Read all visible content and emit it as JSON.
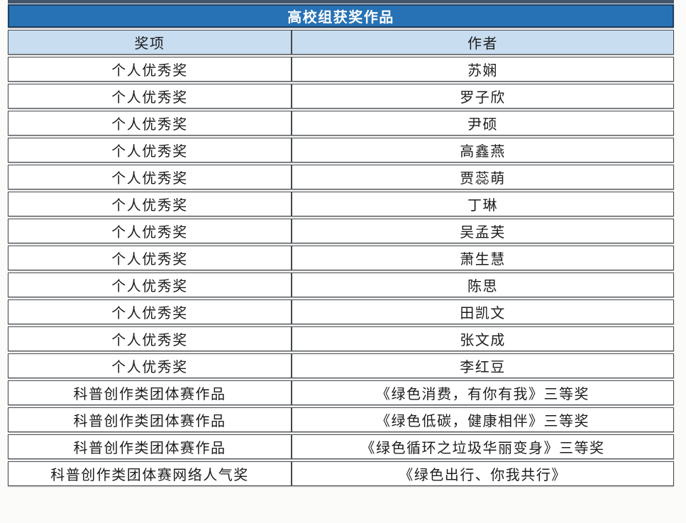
{
  "table": {
    "title": "高校组获奖作品",
    "columns": {
      "award": "奖项",
      "author": "作者"
    },
    "rows": [
      {
        "award": "个人优秀奖",
        "author": "苏娴"
      },
      {
        "award": "个人优秀奖",
        "author": "罗子欣"
      },
      {
        "award": "个人优秀奖",
        "author": "尹硕"
      },
      {
        "award": "个人优秀奖",
        "author": "高鑫燕"
      },
      {
        "award": "个人优秀奖",
        "author": "贾蕊萌"
      },
      {
        "award": "个人优秀奖",
        "author": "丁琳"
      },
      {
        "award": "个人优秀奖",
        "author": "吴孟芙"
      },
      {
        "award": "个人优秀奖",
        "author": "萧生慧"
      },
      {
        "award": "个人优秀奖",
        "author": "陈思"
      },
      {
        "award": "个人优秀奖",
        "author": "田凯文"
      },
      {
        "award": "个人优秀奖",
        "author": "张文成"
      },
      {
        "award": "个人优秀奖",
        "author": "李红豆"
      },
      {
        "award": "科普创作类团体赛作品",
        "author": "《绿色消费，有你有我》三等奖"
      },
      {
        "award": "科普创作类团体赛作品",
        "author": "《绿色低碳，健康相伴》三等奖"
      },
      {
        "award": "科普创作类团体赛作品",
        "author": "《绿色循环之垃圾华丽变身》三等奖"
      },
      {
        "award": "科普创作类团体赛网络人气奖",
        "author": "《绿色出行、你我共行》"
      }
    ]
  },
  "colors": {
    "title_bar_bg": "#2772b4",
    "title_bar_border": "#1d4066",
    "title_text": "#ffffff",
    "header_row_bg": "#c8ddf0",
    "cell_border": "#45494e",
    "body_text": "#1d1d1d",
    "page_bg": "#fbfbfa",
    "crop_strip": "#44566b"
  }
}
